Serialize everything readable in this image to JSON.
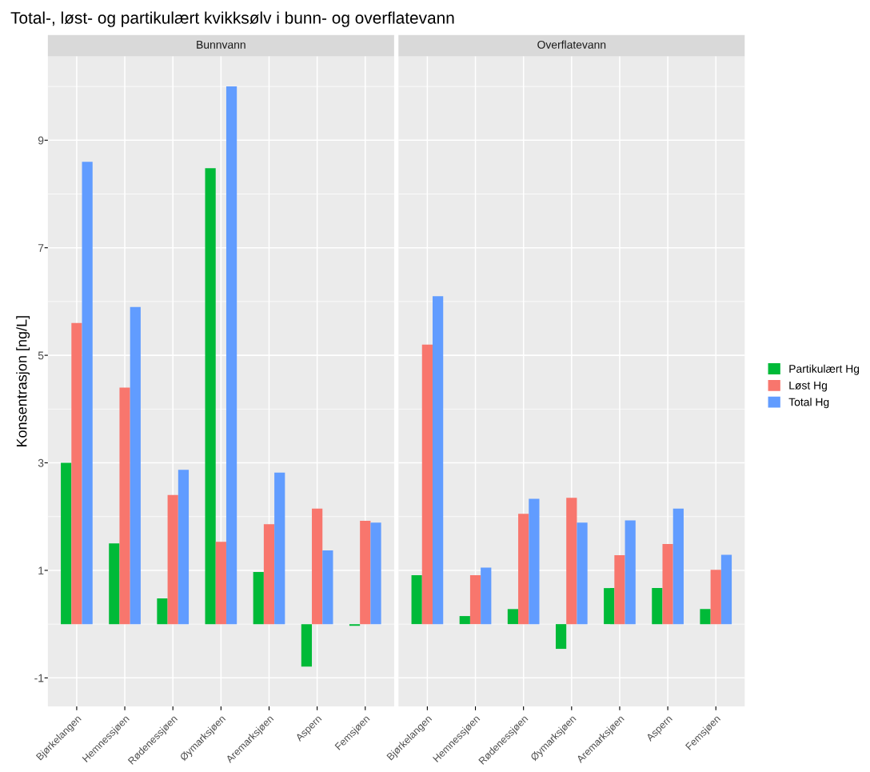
{
  "chart_data": [
    {
      "type": "bar",
      "title": "Total-, løst- og partikulært kvikksølv i bunn- og overflatevann",
      "subtitle": "Bunnvann",
      "ylabel": "Konsentrasjon [ng/L]",
      "categories": [
        "Bjørkelangen",
        "Hemnessjøen",
        "Rødenessjøen",
        "Øymarksjøen",
        "Aremarksjøen",
        "Aspern",
        "Femsjøen"
      ],
      "series": [
        {
          "name": "Partikulært Hg",
          "color": "#00ba38",
          "values": [
            3.0,
            1.5,
            0.48,
            8.48,
            0.97,
            -0.79,
            -0.03
          ]
        },
        {
          "name": "Løst Hg",
          "color": "#f8766d",
          "values": [
            5.6,
            4.4,
            2.4,
            1.53,
            1.86,
            2.15,
            1.92
          ]
        },
        {
          "name": "Total Hg",
          "color": "#619cff",
          "values": [
            8.6,
            5.9,
            2.87,
            10.0,
            2.82,
            1.37,
            1.89
          ]
        }
      ],
      "ylim": [
        -1.53,
        10.56
      ],
      "yticks": [
        -1,
        {
          "value": 0,
          "label": null
        },
        1,
        {
          "value": 2,
          "label": null
        },
        3,
        {
          "value": 4,
          "label": null
        },
        5,
        {
          "value": 6,
          "label": null
        },
        7,
        {
          "value": 8,
          "label": null
        },
        9,
        {
          "value": 10,
          "label": null
        }
      ],
      "grid": true,
      "legend": "right"
    },
    {
      "type": "bar",
      "subtitle": "Overflatevann",
      "categories": [
        "Bjørkelangen",
        "Hemnessjøen",
        "Rødenessjøen",
        "Øymarksjøen",
        "Aremarksjøen",
        "Aspern",
        "Femsjøen"
      ],
      "series": [
        {
          "color": "#00ba38",
          "values": [
            0.91,
            0.15,
            0.28,
            -0.46,
            0.67,
            0.67,
            0.28
          ]
        },
        {
          "color": "#f8766d",
          "values": [
            5.2,
            0.91,
            2.05,
            2.35,
            1.28,
            1.49,
            1.01
          ]
        },
        {
          "color": "#619cff",
          "values": [
            6.1,
            1.05,
            2.33,
            1.89,
            1.93,
            2.15,
            1.29
          ]
        }
      ],
      "ylim": [
        -1.53,
        10.56
      ],
      "yticks": [
        -1,
        {
          "value": 0,
          "label": null
        },
        1,
        {
          "value": 2,
          "label": null
        },
        3,
        {
          "value": 4,
          "label": null
        },
        5,
        {
          "value": 6,
          "label": null
        },
        7,
        {
          "value": 8,
          "label": null
        },
        9,
        {
          "value": 10,
          "label": null
        }
      ],
      "tick_labels": "x",
      "grid": true
    }
  ]
}
